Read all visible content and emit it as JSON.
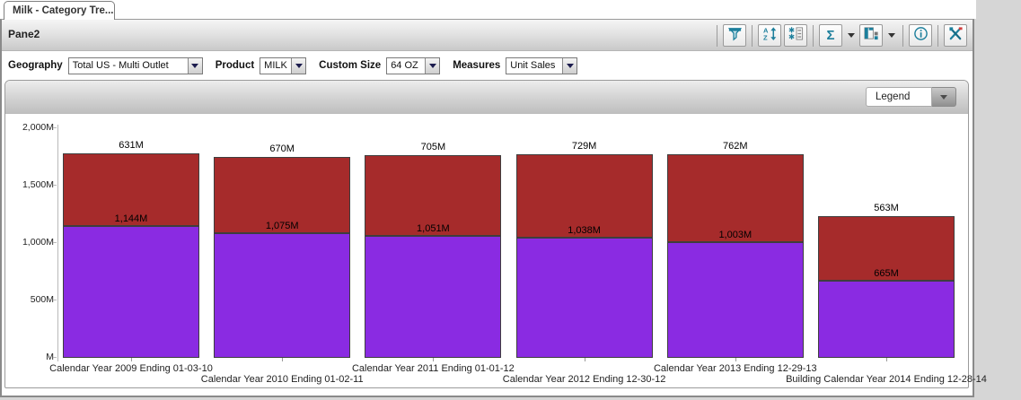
{
  "tab": {
    "title": "Milk - Category Tre..."
  },
  "pane": {
    "title": "Pane2",
    "toolbar_icons": [
      "filter-icon",
      "sort-az-icon",
      "checklist-icon",
      "sigma-icon",
      "table-view-icon",
      "info-icon",
      "design-tools-icon"
    ]
  },
  "filters": [
    {
      "label": "Geography",
      "value": "Total US - Multi Outlet"
    },
    {
      "label": "Product",
      "value": "MILK"
    },
    {
      "label": "Custom Size",
      "value": "64 OZ"
    },
    {
      "label": "Measures",
      "value": "Unit Sales"
    }
  ],
  "legend": {
    "label": "Legend"
  },
  "chart_data": {
    "type": "bar",
    "stacked": true,
    "title": "",
    "xlabel": "",
    "ylabel": "",
    "ylim": [
      0,
      2000
    ],
    "yticks": {
      "values": [
        2000,
        1500,
        1000,
        500,
        0
      ],
      "labels": [
        "2,000M",
        "1,500M",
        "1,000M",
        "500M",
        "M"
      ]
    },
    "grid": false,
    "legend_position": "collapsed-dropdown-top-right",
    "categories": [
      "Calendar Year 2009 Ending 01-03-10",
      "Calendar Year 2010 Ending 01-02-11",
      "Calendar Year 2011 Ending 01-01-12",
      "Calendar Year 2012 Ending 12-30-12",
      "Calendar Year 2013 Ending 12-29-13",
      "Building Calendar Year 2014 Ending 12-28-14"
    ],
    "series": [
      {
        "name": "purple-segment",
        "color": "#8a2be2",
        "values": [
          1144,
          1075,
          1051,
          1038,
          1003,
          665
        ],
        "labels": [
          "1,144M",
          "1,075M",
          "1,051M",
          "1,038M",
          "1,003M",
          "665M"
        ]
      },
      {
        "name": "red-segment",
        "color": "#a62b2b",
        "values": [
          631,
          670,
          705,
          729,
          762,
          563
        ],
        "labels": [
          "631M",
          "670M",
          "705M",
          "729M",
          "762M",
          "563M"
        ]
      }
    ]
  },
  "colors": {
    "purple": "#8a2be2",
    "red": "#a62b2b",
    "icon_teal": "#1d7f9c"
  }
}
